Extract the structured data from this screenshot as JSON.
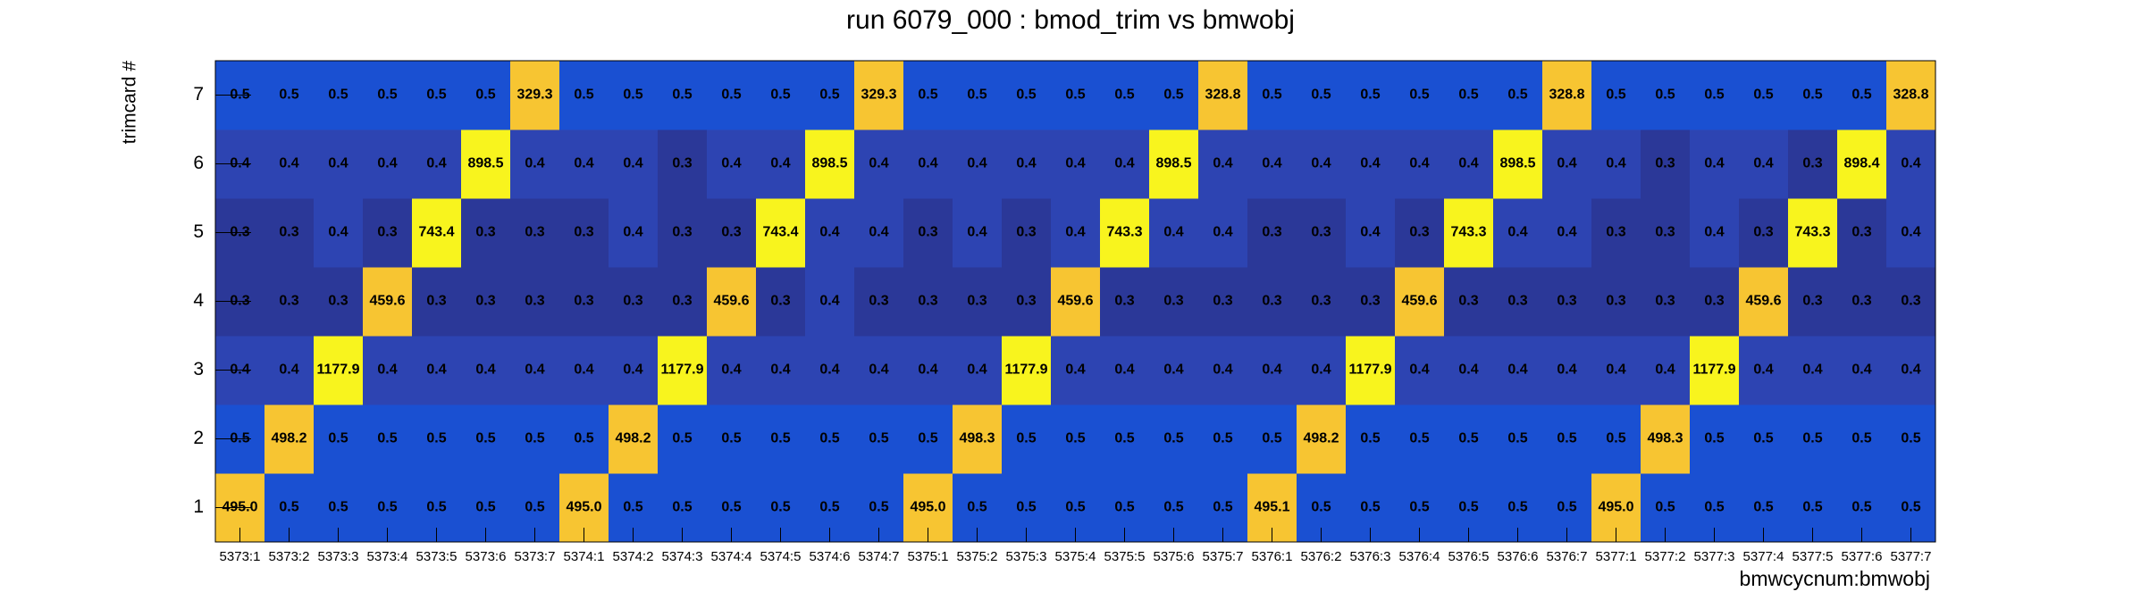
{
  "chart_data": {
    "type": "heatmap",
    "title": "run 6079_000 : bmod_trim vs bmwobj",
    "xlabel": "bmwcycnum:bmwobj",
    "ylabel": "trimcard #",
    "x": [
      "5373:1",
      "5373:2",
      "5373:3",
      "5373:4",
      "5373:5",
      "5373:6",
      "5373:7",
      "5374:1",
      "5374:2",
      "5374:3",
      "5374:4",
      "5374:5",
      "5374:6",
      "5374:7",
      "5375:1",
      "5375:2",
      "5375:3",
      "5375:4",
      "5375:5",
      "5375:6",
      "5375:7",
      "5376:1",
      "5376:2",
      "5376:3",
      "5376:4",
      "5376:5",
      "5376:6",
      "5376:7",
      "5377:1",
      "5377:2",
      "5377:3",
      "5377:4",
      "5377:5",
      "5377:6",
      "5377:7"
    ],
    "y": [
      "1",
      "2",
      "3",
      "4",
      "5",
      "6",
      "7"
    ],
    "palette": [
      "#2b3898",
      "#2d44b2",
      "#1a50d2",
      "#f7c532",
      "#f8f41e"
    ],
    "values": [
      [
        495,
        0.5,
        0.5,
        0.5,
        0.5,
        0.5,
        0.5,
        495,
        0.5,
        0.5,
        0.5,
        0.5,
        0.5,
        0.5,
        495,
        0.5,
        0.5,
        0.5,
        0.5,
        0.5,
        0.5,
        495.1,
        0.5,
        0.5,
        0.5,
        0.5,
        0.5,
        0.5,
        495,
        0.5,
        0.5,
        0.5,
        0.5,
        0.5,
        0.5
      ],
      [
        0.5,
        498.2,
        0.5,
        0.5,
        0.5,
        0.5,
        0.5,
        0.5,
        498.2,
        0.5,
        0.5,
        0.5,
        0.5,
        0.5,
        0.5,
        498.3,
        0.5,
        0.5,
        0.5,
        0.5,
        0.5,
        0.5,
        498.2,
        0.5,
        0.5,
        0.5,
        0.5,
        0.5,
        0.5,
        498.3,
        0.5,
        0.5,
        0.5,
        0.5,
        0.5
      ],
      [
        0.4,
        0.4,
        1177.9,
        0.4,
        0.4,
        0.4,
        0.4,
        0.4,
        0.4,
        1177.9,
        0.4,
        0.4,
        0.4,
        0.4,
        0.4,
        0.4,
        1177.9,
        0.4,
        0.4,
        0.4,
        0.4,
        0.4,
        0.4,
        1177.9,
        0.4,
        0.4,
        0.4,
        0.4,
        0.4,
        0.4,
        1177.9,
        0.4,
        0.4,
        0.4,
        0.4
      ],
      [
        0.3,
        0.3,
        0.3,
        459.6,
        0.3,
        0.3,
        0.3,
        0.3,
        0.3,
        0.3,
        459.6,
        0.3,
        0.4,
        0.3,
        0.3,
        0.3,
        0.3,
        459.6,
        0.3,
        0.3,
        0.3,
        0.3,
        0.3,
        0.3,
        459.6,
        0.3,
        0.3,
        0.3,
        0.3,
        0.3,
        0.3,
        459.6,
        0.3,
        0.3,
        0.3
      ],
      [
        0.3,
        0.3,
        0.4,
        0.3,
        743.4,
        0.3,
        0.3,
        0.3,
        0.4,
        0.3,
        0.3,
        743.4,
        0.4,
        0.4,
        0.3,
        0.4,
        0.3,
        0.4,
        743.3,
        0.4,
        0.4,
        0.3,
        0.3,
        0.4,
        0.3,
        743.3,
        0.4,
        0.4,
        0.3,
        0.3,
        0.4,
        0.3,
        743.3,
        0.3,
        0.4
      ],
      [
        0.4,
        0.4,
        0.4,
        0.4,
        0.4,
        898.5,
        0.4,
        0.4,
        0.4,
        0.3,
        0.4,
        0.4,
        898.5,
        0.4,
        0.4,
        0.4,
        0.4,
        0.4,
        0.4,
        898.5,
        0.4,
        0.4,
        0.4,
        0.4,
        0.4,
        0.4,
        898.5,
        0.4,
        0.4,
        0.3,
        0.4,
        0.4,
        0.3,
        898.4,
        0.4
      ],
      [
        0.5,
        0.5,
        0.5,
        0.5,
        0.5,
        0.5,
        329.3,
        0.5,
        0.5,
        0.5,
        0.5,
        0.5,
        0.5,
        329.3,
        0.5,
        0.5,
        0.5,
        0.5,
        0.5,
        0.5,
        328.8,
        0.5,
        0.5,
        0.5,
        0.5,
        0.5,
        0.5,
        328.8,
        0.5,
        0.5,
        0.5,
        0.5,
        0.5,
        0.5,
        328.8
      ]
    ],
    "value_labels": [
      [
        "495.0",
        "0.5",
        "0.5",
        "0.5",
        "0.5",
        "0.5",
        "0.5",
        "495.0",
        "0.5",
        "0.5",
        "0.5",
        "0.5",
        "0.5",
        "0.5",
        "495.0",
        "0.5",
        "0.5",
        "0.5",
        "0.5",
        "0.5",
        "0.5",
        "495.1",
        "0.5",
        "0.5",
        "0.5",
        "0.5",
        "0.5",
        "0.5",
        "495.0",
        "0.5",
        "0.5",
        "0.5",
        "0.5",
        "0.5",
        "0.5"
      ],
      [
        "0.5",
        "498.2",
        "0.5",
        "0.5",
        "0.5",
        "0.5",
        "0.5",
        "0.5",
        "498.2",
        "0.5",
        "0.5",
        "0.5",
        "0.5",
        "0.5",
        "0.5",
        "498.3",
        "0.5",
        "0.5",
        "0.5",
        "0.5",
        "0.5",
        "0.5",
        "498.2",
        "0.5",
        "0.5",
        "0.5",
        "0.5",
        "0.5",
        "0.5",
        "498.3",
        "0.5",
        "0.5",
        "0.5",
        "0.5",
        "0.5"
      ],
      [
        "0.4",
        "0.4",
        "1177.9",
        "0.4",
        "0.4",
        "0.4",
        "0.4",
        "0.4",
        "0.4",
        "1177.9",
        "0.4",
        "0.4",
        "0.4",
        "0.4",
        "0.4",
        "0.4",
        "1177.9",
        "0.4",
        "0.4",
        "0.4",
        "0.4",
        "0.4",
        "0.4",
        "1177.9",
        "0.4",
        "0.4",
        "0.4",
        "0.4",
        "0.4",
        "0.4",
        "1177.9",
        "0.4",
        "0.4",
        "0.4",
        "0.4"
      ],
      [
        "0.3",
        "0.3",
        "0.3",
        "459.6",
        "0.3",
        "0.3",
        "0.3",
        "0.3",
        "0.3",
        "0.3",
        "459.6",
        "0.3",
        "0.4",
        "0.3",
        "0.3",
        "0.3",
        "0.3",
        "459.6",
        "0.3",
        "0.3",
        "0.3",
        "0.3",
        "0.3",
        "0.3",
        "459.6",
        "0.3",
        "0.3",
        "0.3",
        "0.3",
        "0.3",
        "0.3",
        "459.6",
        "0.3",
        "0.3",
        "0.3"
      ],
      [
        "0.3",
        "0.3",
        "0.4",
        "0.3",
        "743.4",
        "0.3",
        "0.3",
        "0.3",
        "0.4",
        "0.3",
        "0.3",
        "743.4",
        "0.4",
        "0.4",
        "0.3",
        "0.4",
        "0.3",
        "0.4",
        "743.3",
        "0.4",
        "0.4",
        "0.3",
        "0.3",
        "0.4",
        "0.3",
        "743.3",
        "0.4",
        "0.4",
        "0.3",
        "0.3",
        "0.4",
        "0.3",
        "743.3",
        "0.3",
        "0.4"
      ],
      [
        "0.4",
        "0.4",
        "0.4",
        "0.4",
        "0.4",
        "898.5",
        "0.4",
        "0.4",
        "0.4",
        "0.3",
        "0.4",
        "0.4",
        "898.5",
        "0.4",
        "0.4",
        "0.4",
        "0.4",
        "0.4",
        "0.4",
        "898.5",
        "0.4",
        "0.4",
        "0.4",
        "0.4",
        "0.4",
        "0.4",
        "898.5",
        "0.4",
        "0.4",
        "0.3",
        "0.4",
        "0.4",
        "0.3",
        "898.4",
        "0.4"
      ],
      [
        "0.5",
        "0.5",
        "0.5",
        "0.5",
        "0.5",
        "0.5",
        "329.3",
        "0.5",
        "0.5",
        "0.5",
        "0.5",
        "0.5",
        "0.5",
        "329.3",
        "0.5",
        "0.5",
        "0.5",
        "0.5",
        "0.5",
        "0.5",
        "328.8",
        "0.5",
        "0.5",
        "0.5",
        "0.5",
        "0.5",
        "0.5",
        "328.8",
        "0.5",
        "0.5",
        "0.5",
        "0.5",
        "0.5",
        "0.5",
        "328.8"
      ]
    ]
  }
}
